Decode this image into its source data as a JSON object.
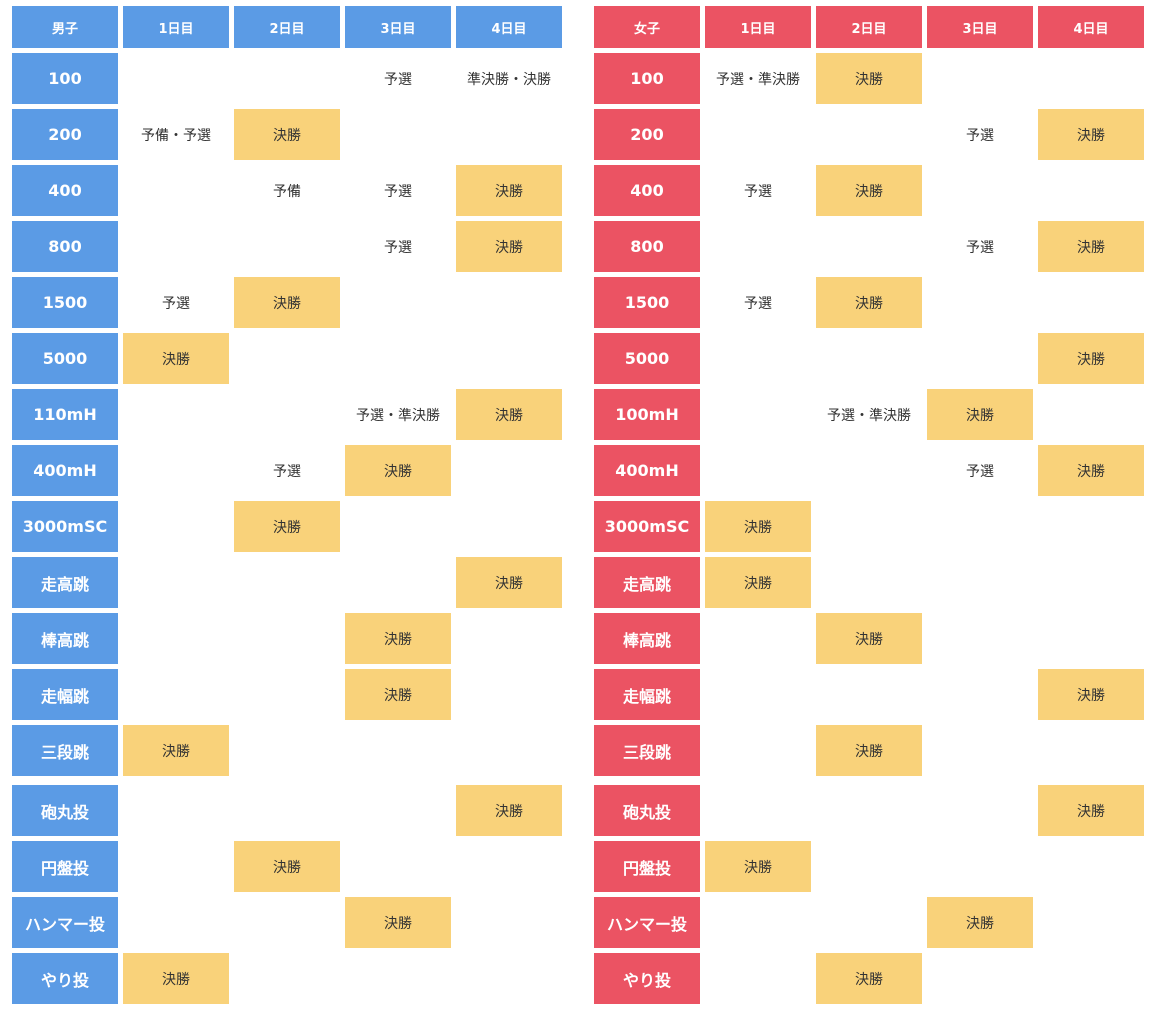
{
  "colors": {
    "men_accent": "#5b9be5",
    "women_accent": "#eb5363",
    "final_highlight": "#f9d27a"
  },
  "men": {
    "header": [
      "男子",
      "1日目",
      "2日目",
      "3日目",
      "4日目"
    ],
    "rows": [
      {
        "event": "100",
        "days": [
          "",
          "",
          "予選",
          "準決勝・決勝"
        ]
      },
      {
        "event": "200",
        "days": [
          "予備・予選",
          "決勝",
          "",
          ""
        ]
      },
      {
        "event": "400",
        "days": [
          "",
          "予備",
          "予選",
          "決勝"
        ]
      },
      {
        "event": "800",
        "days": [
          "",
          "",
          "予選",
          "決勝"
        ]
      },
      {
        "event": "1500",
        "days": [
          "予選",
          "決勝",
          "",
          ""
        ]
      },
      {
        "event": "5000",
        "days": [
          "決勝",
          "",
          "",
          ""
        ]
      },
      {
        "event": "110mH",
        "days": [
          "",
          "",
          "予選・準決勝",
          "決勝"
        ]
      },
      {
        "event": "400mH",
        "days": [
          "",
          "予選",
          "決勝",
          ""
        ]
      },
      {
        "event": "3000mSC",
        "days": [
          "",
          "決勝",
          "",
          ""
        ]
      },
      {
        "event": "走高跳",
        "days": [
          "",
          "",
          "",
          "決勝"
        ]
      },
      {
        "event": "棒高跳",
        "days": [
          "",
          "",
          "決勝",
          ""
        ]
      },
      {
        "event": "走幅跳",
        "days": [
          "",
          "",
          "決勝",
          ""
        ]
      },
      {
        "event": "三段跳",
        "days": [
          "決勝",
          "",
          "",
          ""
        ]
      },
      {
        "event": "砲丸投",
        "days": [
          "",
          "",
          "",
          "決勝"
        ]
      },
      {
        "event": "円盤投",
        "days": [
          "",
          "決勝",
          "",
          ""
        ]
      },
      {
        "event": "ハンマー投",
        "days": [
          "",
          "",
          "決勝",
          ""
        ]
      },
      {
        "event": "やり投",
        "days": [
          "決勝",
          "",
          "",
          ""
        ]
      }
    ]
  },
  "women": {
    "header": [
      "女子",
      "1日目",
      "2日目",
      "3日目",
      "4日目"
    ],
    "rows": [
      {
        "event": "100",
        "days": [
          "予選・準決勝",
          "決勝",
          "",
          ""
        ]
      },
      {
        "event": "200",
        "days": [
          "",
          "",
          "予選",
          "決勝"
        ]
      },
      {
        "event": "400",
        "days": [
          "予選",
          "決勝",
          "",
          ""
        ]
      },
      {
        "event": "800",
        "days": [
          "",
          "",
          "予選",
          "決勝"
        ]
      },
      {
        "event": "1500",
        "days": [
          "予選",
          "決勝",
          "",
          ""
        ]
      },
      {
        "event": "5000",
        "days": [
          "",
          "",
          "",
          "決勝"
        ]
      },
      {
        "event": "100mH",
        "days": [
          "",
          "予選・準決勝",
          "決勝",
          ""
        ]
      },
      {
        "event": "400mH",
        "days": [
          "",
          "",
          "予選",
          "決勝"
        ]
      },
      {
        "event": "3000mSC",
        "days": [
          "決勝",
          "",
          "",
          ""
        ]
      },
      {
        "event": "走高跳",
        "days": [
          "決勝",
          "",
          "",
          ""
        ]
      },
      {
        "event": "棒高跳",
        "days": [
          "",
          "決勝",
          "",
          ""
        ]
      },
      {
        "event": "走幅跳",
        "days": [
          "",
          "",
          "",
          "決勝"
        ]
      },
      {
        "event": "三段跳",
        "days": [
          "",
          "決勝",
          "",
          ""
        ]
      },
      {
        "event": "砲丸投",
        "days": [
          "",
          "",
          "",
          "決勝"
        ]
      },
      {
        "event": "円盤投",
        "days": [
          "決勝",
          "",
          "",
          ""
        ]
      },
      {
        "event": "ハンマー投",
        "days": [
          "",
          "",
          "決勝",
          ""
        ]
      },
      {
        "event": "やり投",
        "days": [
          "",
          "決勝",
          "",
          ""
        ]
      }
    ]
  }
}
